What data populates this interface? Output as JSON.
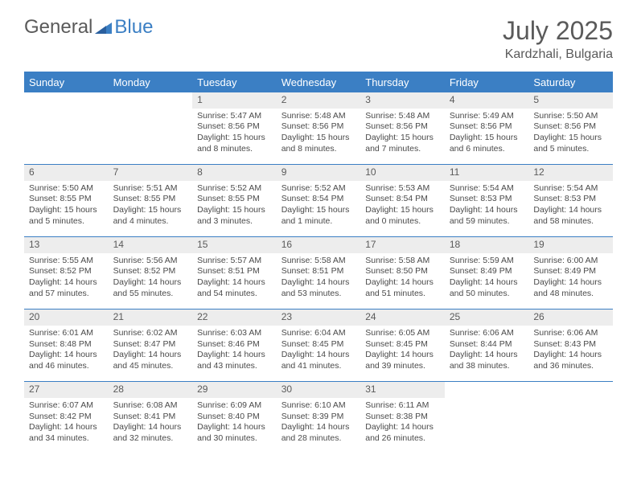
{
  "brand": {
    "part1": "General",
    "part2": "Blue"
  },
  "title": "July 2025",
  "location": "Kardzhali, Bulgaria",
  "colors": {
    "accent": "#3b7fc4",
    "header_bg": "#3b7fc4",
    "header_text": "#ffffff",
    "daynum_bg": "#ededed",
    "text": "#4a4a4a",
    "background": "#ffffff"
  },
  "day_headers": [
    "Sunday",
    "Monday",
    "Tuesday",
    "Wednesday",
    "Thursday",
    "Friday",
    "Saturday"
  ],
  "weeks": [
    {
      "nums": [
        "",
        "",
        "1",
        "2",
        "3",
        "4",
        "5"
      ],
      "cells": [
        "",
        "",
        "Sunrise: 5:47 AM\nSunset: 8:56 PM\nDaylight: 15 hours and 8 minutes.",
        "Sunrise: 5:48 AM\nSunset: 8:56 PM\nDaylight: 15 hours and 8 minutes.",
        "Sunrise: 5:48 AM\nSunset: 8:56 PM\nDaylight: 15 hours and 7 minutes.",
        "Sunrise: 5:49 AM\nSunset: 8:56 PM\nDaylight: 15 hours and 6 minutes.",
        "Sunrise: 5:50 AM\nSunset: 8:56 PM\nDaylight: 15 hours and 5 minutes."
      ]
    },
    {
      "nums": [
        "6",
        "7",
        "8",
        "9",
        "10",
        "11",
        "12"
      ],
      "cells": [
        "Sunrise: 5:50 AM\nSunset: 8:55 PM\nDaylight: 15 hours and 5 minutes.",
        "Sunrise: 5:51 AM\nSunset: 8:55 PM\nDaylight: 15 hours and 4 minutes.",
        "Sunrise: 5:52 AM\nSunset: 8:55 PM\nDaylight: 15 hours and 3 minutes.",
        "Sunrise: 5:52 AM\nSunset: 8:54 PM\nDaylight: 15 hours and 1 minute.",
        "Sunrise: 5:53 AM\nSunset: 8:54 PM\nDaylight: 15 hours and 0 minutes.",
        "Sunrise: 5:54 AM\nSunset: 8:53 PM\nDaylight: 14 hours and 59 minutes.",
        "Sunrise: 5:54 AM\nSunset: 8:53 PM\nDaylight: 14 hours and 58 minutes."
      ]
    },
    {
      "nums": [
        "13",
        "14",
        "15",
        "16",
        "17",
        "18",
        "19"
      ],
      "cells": [
        "Sunrise: 5:55 AM\nSunset: 8:52 PM\nDaylight: 14 hours and 57 minutes.",
        "Sunrise: 5:56 AM\nSunset: 8:52 PM\nDaylight: 14 hours and 55 minutes.",
        "Sunrise: 5:57 AM\nSunset: 8:51 PM\nDaylight: 14 hours and 54 minutes.",
        "Sunrise: 5:58 AM\nSunset: 8:51 PM\nDaylight: 14 hours and 53 minutes.",
        "Sunrise: 5:58 AM\nSunset: 8:50 PM\nDaylight: 14 hours and 51 minutes.",
        "Sunrise: 5:59 AM\nSunset: 8:49 PM\nDaylight: 14 hours and 50 minutes.",
        "Sunrise: 6:00 AM\nSunset: 8:49 PM\nDaylight: 14 hours and 48 minutes."
      ]
    },
    {
      "nums": [
        "20",
        "21",
        "22",
        "23",
        "24",
        "25",
        "26"
      ],
      "cells": [
        "Sunrise: 6:01 AM\nSunset: 8:48 PM\nDaylight: 14 hours and 46 minutes.",
        "Sunrise: 6:02 AM\nSunset: 8:47 PM\nDaylight: 14 hours and 45 minutes.",
        "Sunrise: 6:03 AM\nSunset: 8:46 PM\nDaylight: 14 hours and 43 minutes.",
        "Sunrise: 6:04 AM\nSunset: 8:45 PM\nDaylight: 14 hours and 41 minutes.",
        "Sunrise: 6:05 AM\nSunset: 8:45 PM\nDaylight: 14 hours and 39 minutes.",
        "Sunrise: 6:06 AM\nSunset: 8:44 PM\nDaylight: 14 hours and 38 minutes.",
        "Sunrise: 6:06 AM\nSunset: 8:43 PM\nDaylight: 14 hours and 36 minutes."
      ]
    },
    {
      "nums": [
        "27",
        "28",
        "29",
        "30",
        "31",
        "",
        ""
      ],
      "cells": [
        "Sunrise: 6:07 AM\nSunset: 8:42 PM\nDaylight: 14 hours and 34 minutes.",
        "Sunrise: 6:08 AM\nSunset: 8:41 PM\nDaylight: 14 hours and 32 minutes.",
        "Sunrise: 6:09 AM\nSunset: 8:40 PM\nDaylight: 14 hours and 30 minutes.",
        "Sunrise: 6:10 AM\nSunset: 8:39 PM\nDaylight: 14 hours and 28 minutes.",
        "Sunrise: 6:11 AM\nSunset: 8:38 PM\nDaylight: 14 hours and 26 minutes.",
        "",
        ""
      ]
    }
  ]
}
